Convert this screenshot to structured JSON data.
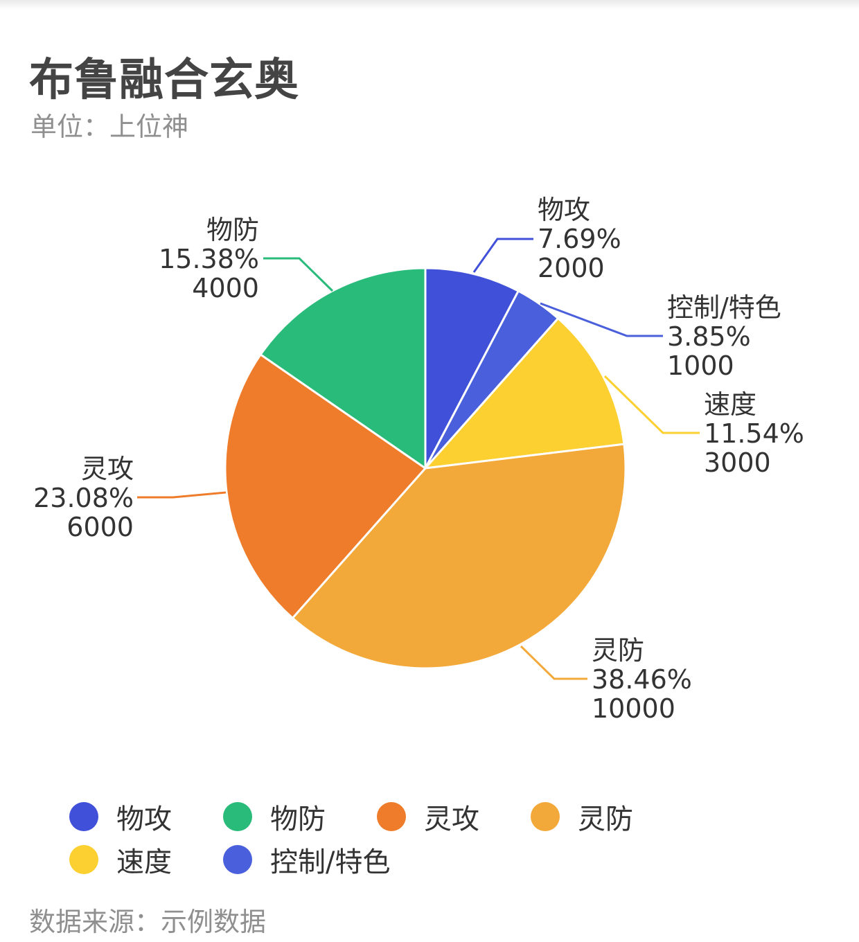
{
  "chart_data": {
    "type": "pie",
    "title": "布鲁融合玄奥",
    "subtitle": "单位：上位神",
    "source": "数据来源：示例数据",
    "legend_position": "bottom",
    "slices": [
      {
        "name": "物攻",
        "value": 2000,
        "percent": "7.69%",
        "color": "#4050d8"
      },
      {
        "name": "控制/特色",
        "value": 1000,
        "percent": "3.85%",
        "color": "#4a5fdb"
      },
      {
        "name": "速度",
        "value": 3000,
        "percent": "11.54%",
        "color": "#fbd030"
      },
      {
        "name": "灵防",
        "value": 10000,
        "percent": "38.46%",
        "color": "#f3a93a"
      },
      {
        "name": "灵攻",
        "value": 6000,
        "percent": "23.08%",
        "color": "#ee7c2b"
      },
      {
        "name": "物防",
        "value": 4000,
        "percent": "15.38%",
        "color": "#28bb7a"
      }
    ],
    "legend_order": [
      "物攻",
      "物防",
      "灵攻",
      "灵防",
      "速度",
      "控制/特色"
    ]
  }
}
